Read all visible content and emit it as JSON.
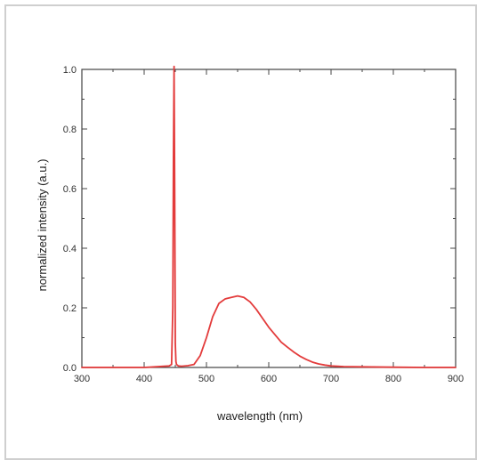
{
  "chart_data": {
    "type": "line",
    "title": "",
    "xlabel": "wavelength (nm)",
    "ylabel": "normalized intensity (a.u.)",
    "xlim": [
      300,
      900
    ],
    "ylim": [
      0,
      1.0
    ],
    "x_ticks": [
      "300",
      "400",
      "500",
      "600",
      "700",
      "800",
      "900"
    ],
    "y_ticks": [
      "0.0",
      "0.2",
      "0.4",
      "0.6",
      "0.8",
      "1.0"
    ],
    "grid": false,
    "legend": "none",
    "colors": {
      "line": "#e33b3b",
      "axis": "#444444",
      "frame": "#cfcfcf"
    },
    "series": [
      {
        "x": [
          300,
          400,
          440,
          444,
          446,
          447,
          448,
          449,
          450,
          451,
          452,
          455,
          460,
          470,
          480,
          490,
          500,
          510,
          520,
          530,
          540,
          550,
          560,
          570,
          580,
          590,
          600,
          610,
          620,
          630,
          640,
          650,
          660,
          670,
          680,
          690,
          700,
          720,
          750,
          800,
          850,
          900
        ],
        "y": [
          0.0,
          0.0,
          0.005,
          0.01,
          0.2,
          0.7,
          1.01,
          0.6,
          0.08,
          0.02,
          0.01,
          0.005,
          0.004,
          0.006,
          0.01,
          0.04,
          0.1,
          0.17,
          0.215,
          0.23,
          0.235,
          0.24,
          0.235,
          0.22,
          0.195,
          0.165,
          0.135,
          0.11,
          0.085,
          0.068,
          0.052,
          0.038,
          0.027,
          0.018,
          0.012,
          0.008,
          0.005,
          0.003,
          0.002,
          0.001,
          0.0,
          0.0
        ]
      }
    ]
  }
}
